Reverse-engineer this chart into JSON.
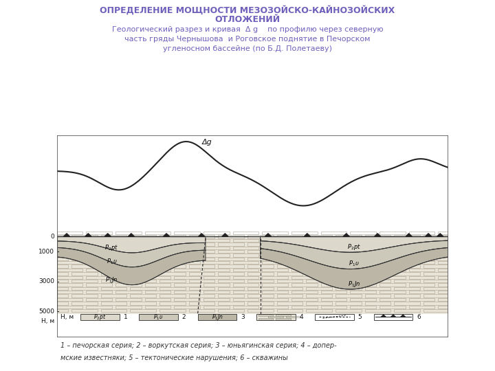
{
  "title_line1": "ОПРЕДЕЛЕНИЕ МОЩНОСТИ МЕЗОЗОЙСКО-КАЙНОЗОЙСКИХ",
  "title_line2": "ОТЛОЖЕНИЙ",
  "subtitle": "Геологический разрез и кривая  Δ g    по профилю через северную\nчасть гряды Чернышова  и Роговское поднятие в Печорском\nугленосном бассейне (по Б.Д. Полетаеву)",
  "title_color": "#7060bb",
  "bg_color": "#ffffff",
  "panel_bg": "#f5f4f0",
  "caption_bg": "#f5f4f0",
  "border_color": "#555555",
  "curve_color": "#222222",
  "legend_text_line1": "1 – печорская серия; 2 – воркутская серия; 3 – юньягинская серия; 4 – допер-",
  "legend_text_line2": "мские известняки; 5 – тектонические нарушения; 6 – скважины",
  "delta_g_label": "Δg",
  "depth_labels": [
    "0",
    "1000",
    "3000",
    "5000"
  ],
  "depth_label_H": "H, м",
  "layer_labels_left": [
    "P₂pt",
    "P₁v",
    "P₁Jn"
  ],
  "layer_labels_right": [
    "P₂pt",
    "P₁v",
    "P₁Jn"
  ],
  "legend_box_labels": [
    "P₂pt",
    "P₁v",
    "P₁Jn",
    "",
    "",
    ""
  ],
  "legend_nums": [
    "1",
    "2",
    "3",
    "4",
    "5",
    "6"
  ],
  "p2pt_color": "#ddd8cc",
  "p1v_color": "#ccc8ba",
  "p1jn_color": "#bbb6a6",
  "limestone_color": "#e8e4d8",
  "brick_color": "#aaa090"
}
